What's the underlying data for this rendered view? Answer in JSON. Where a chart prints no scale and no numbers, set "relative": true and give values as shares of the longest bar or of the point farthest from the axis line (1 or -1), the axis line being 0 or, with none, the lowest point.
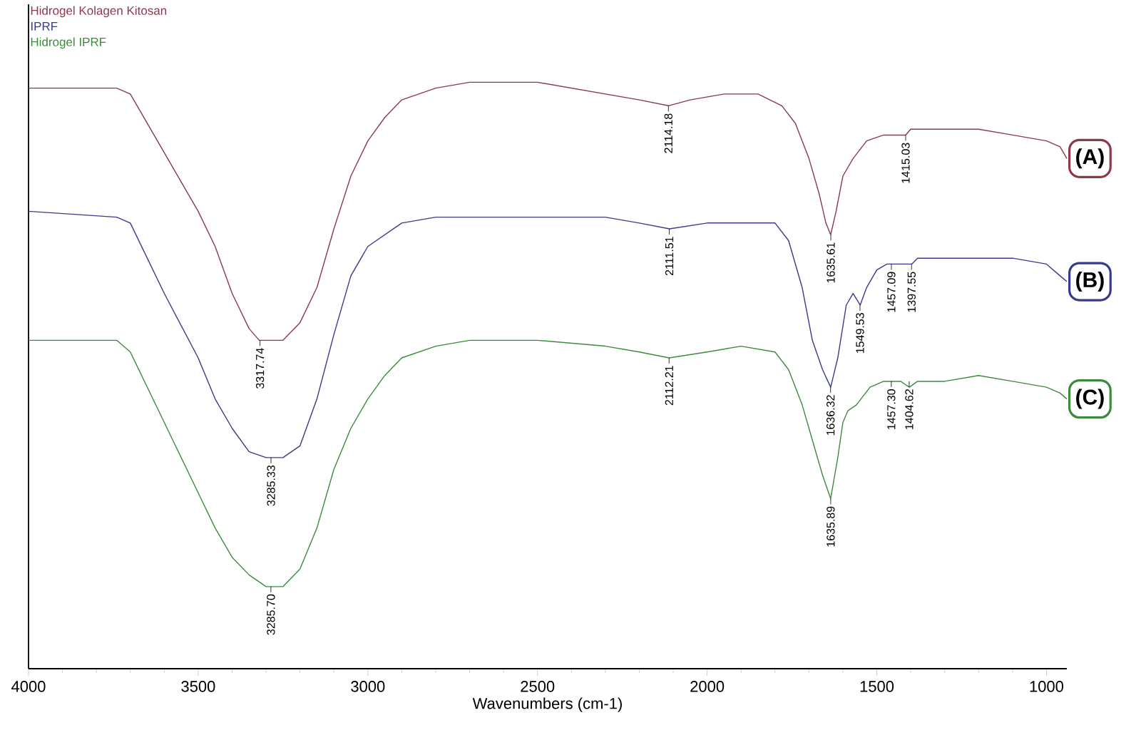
{
  "chart_data": {
    "type": "line",
    "relative": true,
    "xlabel": "Wavenumbers (cm-1)",
    "xlim": [
      4000,
      940
    ],
    "xticks": [
      4000,
      3500,
      3000,
      2500,
      2000,
      1500,
      1000
    ],
    "legend": "top left",
    "series": [
      {
        "name": "Hidrogel Kolagen Kitosan",
        "color": "#8b3a4a",
        "x": [
          4000,
          3800,
          3740,
          3700,
          3650,
          3600,
          3500,
          3450,
          3400,
          3350,
          3320,
          3250,
          3200,
          3150,
          3100,
          3050,
          3000,
          2950,
          2900,
          2800,
          2700,
          2600,
          2500,
          2400,
          2300,
          2200,
          2114,
          2050,
          1950,
          1850,
          1780,
          1740,
          1700,
          1670,
          1650,
          1636,
          1620,
          1600,
          1570,
          1530,
          1480,
          1440,
          1415,
          1400,
          1300,
          1200,
          1100,
          1000,
          960,
          940
        ],
        "values": [
          0.99,
          0.99,
          0.99,
          0.98,
          0.93,
          0.88,
          0.78,
          0.72,
          0.64,
          0.58,
          0.56,
          0.56,
          0.59,
          0.65,
          0.75,
          0.84,
          0.9,
          0.94,
          0.97,
          0.99,
          1.0,
          1.0,
          1.0,
          0.99,
          0.98,
          0.97,
          0.96,
          0.97,
          0.98,
          0.98,
          0.96,
          0.93,
          0.87,
          0.81,
          0.76,
          0.74,
          0.78,
          0.84,
          0.87,
          0.9,
          0.91,
          0.91,
          0.91,
          0.92,
          0.92,
          0.92,
          0.91,
          0.9,
          0.89,
          0.87
        ]
      },
      {
        "name": "IPRF",
        "color": "#3a3a8c",
        "x": [
          4000,
          3740,
          3700,
          3650,
          3600,
          3500,
          3450,
          3400,
          3350,
          3300,
          3250,
          3200,
          3150,
          3100,
          3050,
          3000,
          2950,
          2900,
          2800,
          2700,
          2500,
          2300,
          2200,
          2111,
          2000,
          1900,
          1800,
          1760,
          1720,
          1690,
          1660,
          1636,
          1615,
          1590,
          1570,
          1549,
          1530,
          1500,
          1470,
          1457,
          1430,
          1397,
          1380,
          1300,
          1200,
          1100,
          1000,
          960,
          940
        ],
        "values": [
          0.78,
          0.77,
          0.76,
          0.7,
          0.64,
          0.53,
          0.46,
          0.41,
          0.37,
          0.36,
          0.36,
          0.38,
          0.46,
          0.57,
          0.67,
          0.72,
          0.74,
          0.76,
          0.77,
          0.77,
          0.77,
          0.77,
          0.76,
          0.75,
          0.76,
          0.76,
          0.76,
          0.73,
          0.65,
          0.56,
          0.51,
          0.48,
          0.53,
          0.62,
          0.64,
          0.62,
          0.65,
          0.68,
          0.69,
          0.69,
          0.69,
          0.69,
          0.7,
          0.7,
          0.7,
          0.7,
          0.69,
          0.67,
          0.66
        ]
      },
      {
        "name": "Hidrogel IPRF",
        "color": "#3d8a3d",
        "x": [
          4000,
          3740,
          3700,
          3650,
          3600,
          3500,
          3450,
          3400,
          3350,
          3300,
          3250,
          3200,
          3150,
          3100,
          3050,
          3000,
          2950,
          2900,
          2800,
          2700,
          2500,
          2300,
          2200,
          2112,
          2000,
          1900,
          1800,
          1760,
          1720,
          1690,
          1660,
          1636,
          1615,
          1600,
          1585,
          1560,
          1520,
          1480,
          1457,
          1430,
          1404,
          1380,
          1300,
          1200,
          1100,
          1000,
          960,
          940
        ],
        "values": [
          0.56,
          0.56,
          0.54,
          0.48,
          0.42,
          0.3,
          0.24,
          0.19,
          0.16,
          0.14,
          0.14,
          0.17,
          0.24,
          0.34,
          0.41,
          0.46,
          0.5,
          0.53,
          0.55,
          0.56,
          0.56,
          0.55,
          0.54,
          0.53,
          0.54,
          0.55,
          0.54,
          0.51,
          0.45,
          0.39,
          0.33,
          0.29,
          0.36,
          0.42,
          0.44,
          0.45,
          0.48,
          0.49,
          0.49,
          0.49,
          0.48,
          0.49,
          0.49,
          0.5,
          0.49,
          0.48,
          0.47,
          0.46
        ]
      }
    ],
    "annotations": [
      {
        "text": "3317.74",
        "x": 3317.74,
        "y": 0.56
      },
      {
        "text": "2114.18",
        "x": 2114.18,
        "y": 0.96
      },
      {
        "text": "1635.61",
        "x": 1635.61,
        "y": 0.74
      },
      {
        "text": "1415.03",
        "x": 1415.03,
        "y": 0.91
      },
      {
        "text": "3285.33",
        "x": 3285.33,
        "y": 0.36
      },
      {
        "text": "2111.51",
        "x": 2111.51,
        "y": 0.75
      },
      {
        "text": "1636.32",
        "x": 1636.32,
        "y": 0.48
      },
      {
        "text": "1549.53",
        "x": 1549.53,
        "y": 0.62
      },
      {
        "text": "1457.09",
        "x": 1457.09,
        "y": 0.69
      },
      {
        "text": "1397.55",
        "x": 1397.55,
        "y": 0.69
      },
      {
        "text": "3285.70",
        "x": 3285.7,
        "y": 0.14
      },
      {
        "text": "2112.21",
        "x": 2112.21,
        "y": 0.53
      },
      {
        "text": "1635.89",
        "x": 1635.89,
        "y": 0.29
      },
      {
        "text": "1457.30",
        "x": 1457.3,
        "y": 0.49
      },
      {
        "text": "1404.62",
        "x": 1404.62,
        "y": 0.49
      },
      {
        "text": "(A)",
        "x": 940,
        "y": 0.87
      },
      {
        "text": "(B)",
        "x": 940,
        "y": 0.66
      },
      {
        "text": "(C)",
        "x": 940,
        "y": 0.46
      }
    ]
  }
}
